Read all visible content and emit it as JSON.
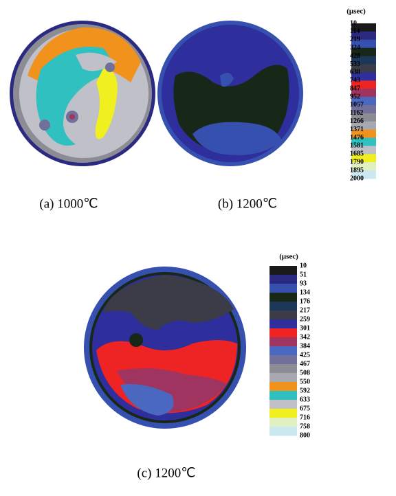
{
  "panels": [
    {
      "caption": "(a)  1000℃"
    },
    {
      "caption": "(b)  1200℃"
    },
    {
      "caption": "(c)  1200℃"
    }
  ],
  "scales": [
    {
      "unit": "(μsec)",
      "labels": [
        10,
        114,
        219,
        324,
        428,
        533,
        638,
        743,
        847,
        952,
        1057,
        1162,
        1266,
        1371,
        1476,
        1581,
        1685,
        1790,
        1895,
        2000
      ],
      "colors": [
        "#1a1a1a",
        "#2a2a80",
        "#3650b0",
        "#182818",
        "#1c3858",
        "#3c3c48",
        "#2e2e9c",
        "#ee2424",
        "#a03460",
        "#4a68c0",
        "#70709a",
        "#8c8c94",
        "#a8a8b0",
        "#f0921c",
        "#30c0c0",
        "#c0c0c8",
        "#f0f020",
        "#e0f0c0",
        "#cce8f0"
      ]
    },
    {
      "unit": "(μsec)",
      "labels": [
        10,
        51,
        93,
        134,
        176,
        217,
        259,
        301,
        342,
        384,
        425,
        467,
        508,
        550,
        592,
        633,
        675,
        716,
        758,
        800
      ],
      "colors": [
        "#1a1a1a",
        "#2a2a80",
        "#3650b0",
        "#182818",
        "#1c3858",
        "#3c3c48",
        "#2e2e9c",
        "#ee2424",
        "#a03460",
        "#4a68c0",
        "#70709a",
        "#8c8c94",
        "#a8a8b0",
        "#f0921c",
        "#30c0c0",
        "#c0c0c8",
        "#f0f020",
        "#e0f0c0",
        "#cce8f0"
      ]
    }
  ]
}
